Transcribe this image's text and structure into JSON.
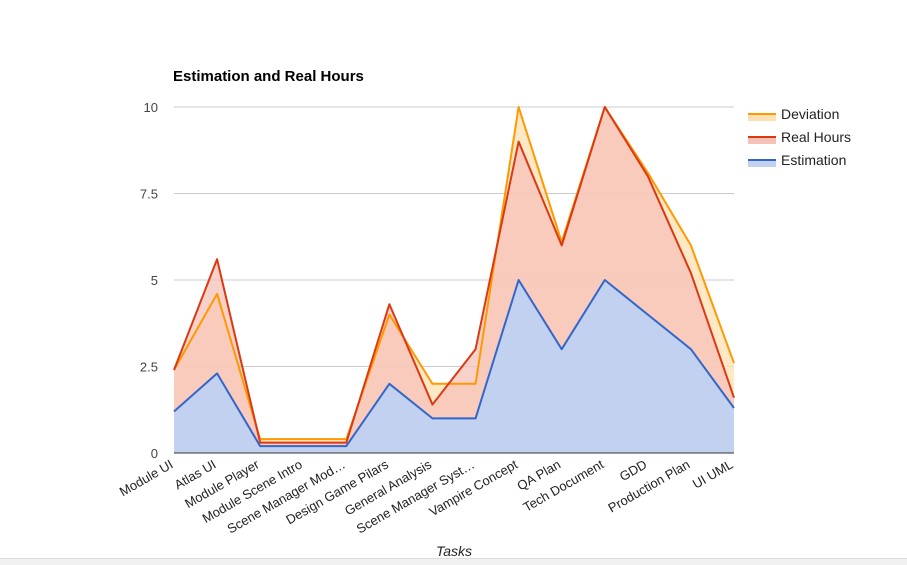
{
  "chart_data": {
    "type": "area",
    "title": "Estimation and Real Hours",
    "xlabel": "Tasks",
    "ylabel": "",
    "ylim": [
      0,
      10
    ],
    "yticks": [
      "0",
      "2.5",
      "5",
      "7.5",
      "10"
    ],
    "grid": true,
    "legend_position": "right",
    "categories": [
      "Module UI",
      "Atlas UI",
      "Module Player",
      "Module Scene Intro",
      "Scene Manager Mod…",
      "Design Game Pilars",
      "General Analysis",
      "Scene Manager Syst…",
      "Vampire Concept",
      "QA Plan",
      "Tech Document",
      "GDD",
      "Production Plan",
      "UI UML"
    ],
    "series": [
      {
        "name": "Estimation",
        "color": "#3366cc",
        "fill": "#c2d1ef",
        "values": [
          1.2,
          2.3,
          0.2,
          0.2,
          0.2,
          2.0,
          1.0,
          1.0,
          5.0,
          3.0,
          5.0,
          4.0,
          3.0,
          1.3
        ]
      },
      {
        "name": "Real Hours",
        "color": "#dc3912",
        "fill": "#f5c2b8",
        "values": [
          2.4,
          5.6,
          0.3,
          0.3,
          0.3,
          4.3,
          1.4,
          3.0,
          9.0,
          6.0,
          10.0,
          8.0,
          5.2,
          1.6
        ]
      },
      {
        "name": "Deviation",
        "color": "#ff9900",
        "fill": "#ffe0b3",
        "values": [
          2.4,
          4.6,
          0.4,
          0.4,
          0.4,
          4.0,
          2.0,
          2.0,
          10.0,
          6.1,
          10.0,
          8.1,
          6.0,
          2.6
        ]
      }
    ]
  }
}
